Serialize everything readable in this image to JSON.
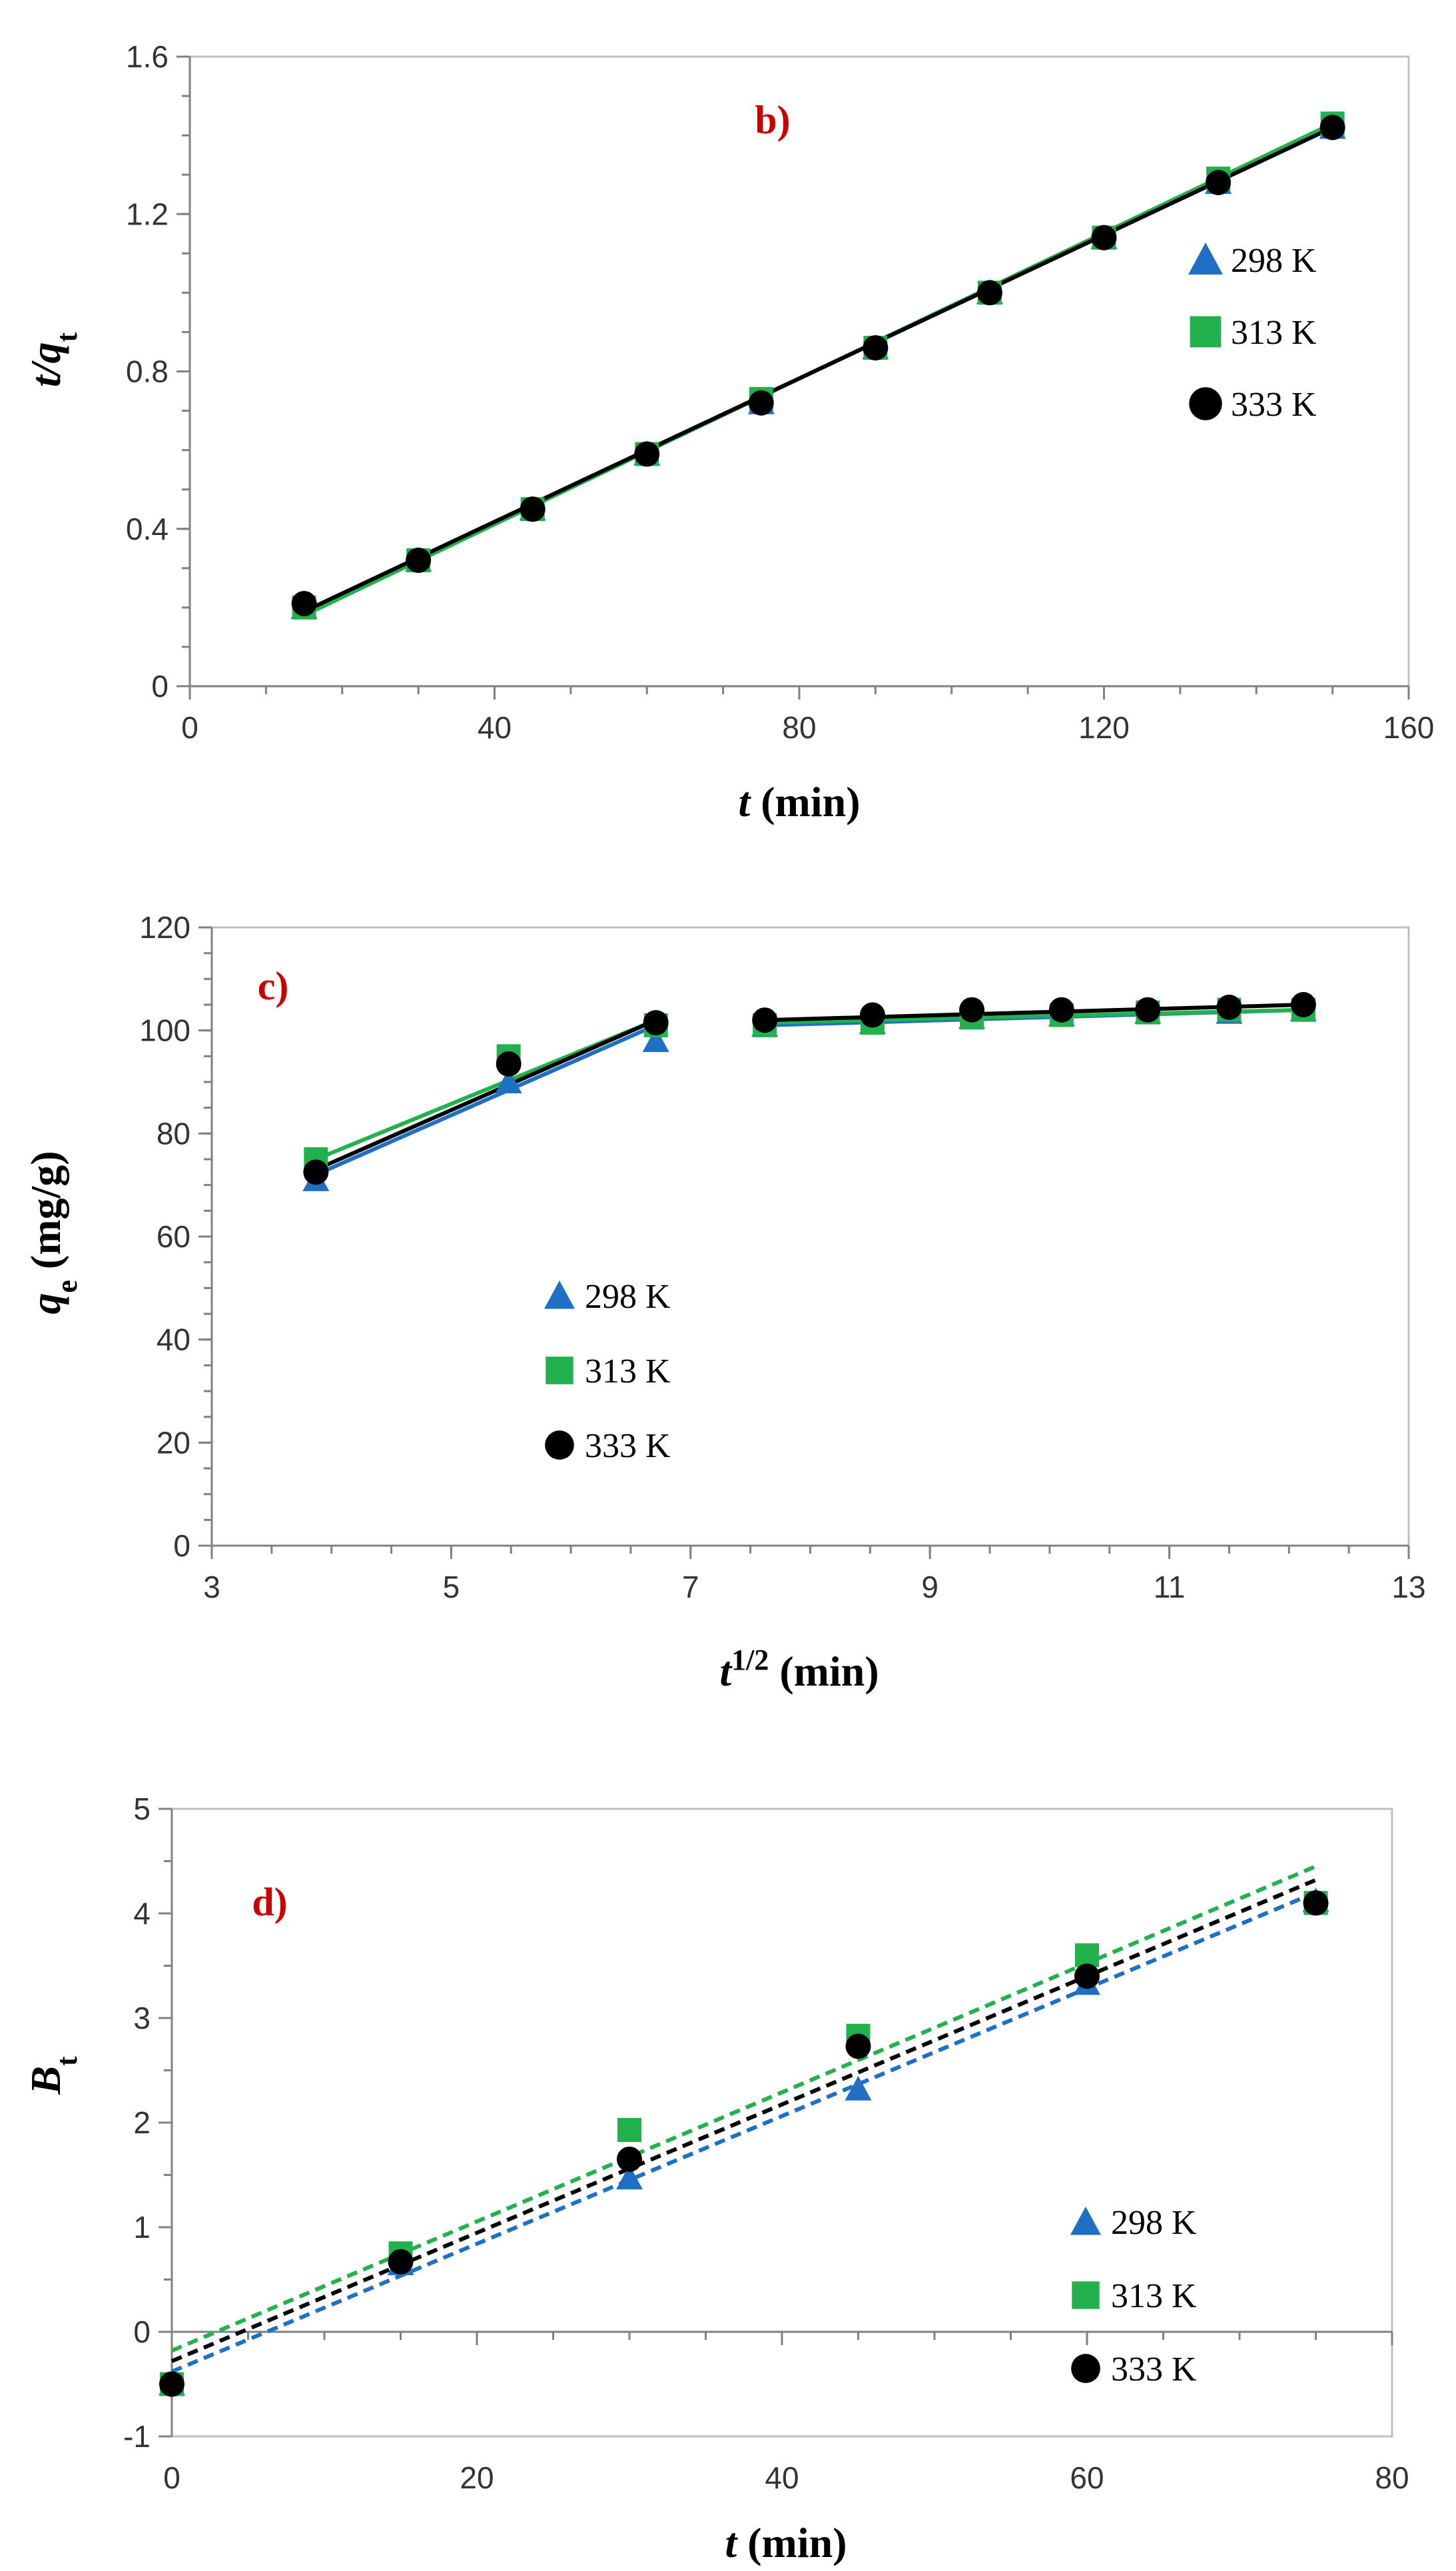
{
  "colors": {
    "series_298": "#1f6fc5",
    "series_313": "#22b14c",
    "series_333": "#000000",
    "panel_label": "#cc0000",
    "axis": "#808080"
  },
  "chart_data": [
    {
      "type": "scatter",
      "panel_label": "b)",
      "xlabel": {
        "italic": "t",
        "rest": " (min)"
      },
      "ylabel": {
        "italic": "t/q",
        "sub": "t"
      },
      "xlim": [
        0,
        160
      ],
      "ylim": [
        0,
        1.6
      ],
      "x_ticks": [
        "0",
        "40",
        "80",
        "120",
        "160"
      ],
      "y_ticks": [
        "0",
        "0.4",
        "0.8",
        "1.2",
        "1.6"
      ],
      "x_tick_values": [
        0,
        40,
        80,
        120,
        160
      ],
      "y_tick_values": [
        0,
        0.4,
        0.8,
        1.2,
        1.6
      ],
      "x_minor_step": 10,
      "y_minor_step": 0.1,
      "legend_position": "right",
      "series": [
        {
          "name": "298 K",
          "marker": "triangle",
          "color": "#1f6fc5",
          "x": [
            15,
            30,
            45,
            60,
            75,
            90,
            105,
            120,
            135,
            150
          ],
          "values": [
            0.2,
            0.32,
            0.45,
            0.59,
            0.72,
            0.86,
            1.0,
            1.14,
            1.28,
            1.42
          ],
          "fit": {
            "x": [
              15,
              150
            ],
            "y": [
              0.19,
              1.42
            ],
            "style": "solid"
          }
        },
        {
          "name": "313 K",
          "marker": "square",
          "color": "#22b14c",
          "x": [
            15,
            30,
            45,
            60,
            75,
            90,
            105,
            120,
            135,
            150
          ],
          "values": [
            0.2,
            0.32,
            0.45,
            0.59,
            0.73,
            0.86,
            1.0,
            1.14,
            1.29,
            1.43
          ],
          "fit": {
            "x": [
              15,
              150
            ],
            "y": [
              0.18,
              1.43
            ],
            "style": "solid"
          }
        },
        {
          "name": "333 K",
          "marker": "circle",
          "color": "#000000",
          "x": [
            15,
            30,
            45,
            60,
            75,
            90,
            105,
            120,
            135,
            150
          ],
          "values": [
            0.21,
            0.32,
            0.45,
            0.59,
            0.72,
            0.86,
            1.0,
            1.14,
            1.28,
            1.42
          ],
          "fit": {
            "x": [
              15,
              150
            ],
            "y": [
              0.19,
              1.42
            ],
            "style": "solid"
          }
        }
      ]
    },
    {
      "type": "scatter",
      "panel_label": "c)",
      "xlabel": {
        "italic": "t",
        "sup": "1/2",
        "rest": " (min)"
      },
      "ylabel": {
        "italic": "q",
        "sub": "e",
        "rest": " (mg/g)"
      },
      "xlim": [
        3,
        13
      ],
      "ylim": [
        0,
        120
      ],
      "x_ticks": [
        "3",
        "5",
        "7",
        "9",
        "11",
        "13"
      ],
      "y_ticks": [
        "0",
        "20",
        "40",
        "60",
        "80",
        "100",
        "120"
      ],
      "x_tick_values": [
        3,
        5,
        7,
        9,
        11,
        13
      ],
      "y_tick_values": [
        0,
        20,
        40,
        60,
        80,
        100,
        120
      ],
      "x_minor_step": 0.5,
      "y_minor_step": 5,
      "legend_position": "center-left",
      "series": [
        {
          "name": "298 K",
          "marker": "triangle",
          "color": "#1f6fc5",
          "x": [
            3.87,
            5.48,
            6.71,
            7.62,
            8.52,
            9.35,
            10.1,
            10.82,
            11.5,
            12.12
          ],
          "values": [
            71,
            90,
            98,
            101,
            101.5,
            102.5,
            103,
            103.5,
            103.5,
            104
          ],
          "fit_segments": [
            {
              "x": [
                3.87,
                6.71
              ],
              "y": [
                72,
                101
              ]
            },
            {
              "x": [
                7.62,
                12.12
              ],
              "y": [
                101,
                104
              ]
            }
          ]
        },
        {
          "name": "313 K",
          "marker": "square",
          "color": "#22b14c",
          "x": [
            3.87,
            5.48,
            6.71,
            7.62,
            8.52,
            9.35,
            10.1,
            10.82,
            11.5,
            12.12
          ],
          "values": [
            75,
            95,
            101,
            101,
            101.5,
            102.5,
            103,
            103.5,
            104,
            104
          ],
          "fit_segments": [
            {
              "x": [
                3.87,
                6.71
              ],
              "y": [
                75,
                102
              ]
            },
            {
              "x": [
                7.62,
                12.12
              ],
              "y": [
                101.5,
                104
              ]
            }
          ]
        },
        {
          "name": "333 K",
          "marker": "circle",
          "color": "#000000",
          "x": [
            3.87,
            5.48,
            6.71,
            7.62,
            8.52,
            9.35,
            10.1,
            10.82,
            11.5,
            12.12
          ],
          "values": [
            72.5,
            93.5,
            101.5,
            102,
            103,
            104,
            104,
            104,
            104.5,
            105
          ],
          "fit_segments": [
            {
              "x": [
                3.87,
                6.71
              ],
              "y": [
                73,
                102
              ]
            },
            {
              "x": [
                7.62,
                12.12
              ],
              "y": [
                102,
                105
              ]
            }
          ]
        }
      ]
    },
    {
      "type": "scatter",
      "panel_label": "d)",
      "xlabel": {
        "italic": "t",
        "rest": " (min)"
      },
      "ylabel": {
        "italic": "B",
        "sub": "t"
      },
      "xlim": [
        0,
        80
      ],
      "ylim": [
        -1,
        5
      ],
      "x_ticks": [
        "0",
        "20",
        "40",
        "60",
        "80"
      ],
      "y_ticks": [
        "-1",
        "0",
        "1",
        "2",
        "3",
        "4",
        "5"
      ],
      "x_tick_values": [
        0,
        20,
        40,
        60,
        80
      ],
      "y_tick_values": [
        -1,
        0,
        1,
        2,
        3,
        4,
        5
      ],
      "x_minor_step": 5,
      "y_minor_step": 0.5,
      "legend_position": "bottom-right",
      "series": [
        {
          "name": "298 K",
          "marker": "triangle",
          "color": "#1f6fc5",
          "x": [
            0,
            15,
            30,
            45,
            60,
            75
          ],
          "values": [
            -0.5,
            0.65,
            1.47,
            2.32,
            3.33,
            4.12
          ],
          "fit": {
            "x": [
              0,
              75
            ],
            "y": [
              -0.38,
              4.2
            ],
            "style": "dashed"
          }
        },
        {
          "name": "313 K",
          "marker": "square",
          "color": "#22b14c",
          "x": [
            0,
            15,
            30,
            45,
            60,
            75
          ],
          "values": [
            -0.5,
            0.75,
            1.93,
            2.83,
            3.6,
            4.1
          ],
          "fit": {
            "x": [
              0,
              75
            ],
            "y": [
              -0.18,
              4.45
            ],
            "style": "dashed"
          }
        },
        {
          "name": "333 K",
          "marker": "circle",
          "color": "#000000",
          "x": [
            0,
            15,
            30,
            45,
            60,
            75
          ],
          "values": [
            -0.5,
            0.67,
            1.65,
            2.73,
            3.4,
            4.1
          ],
          "fit": {
            "x": [
              0,
              75
            ],
            "y": [
              -0.28,
              4.32
            ],
            "style": "dashed"
          }
        }
      ]
    }
  ]
}
